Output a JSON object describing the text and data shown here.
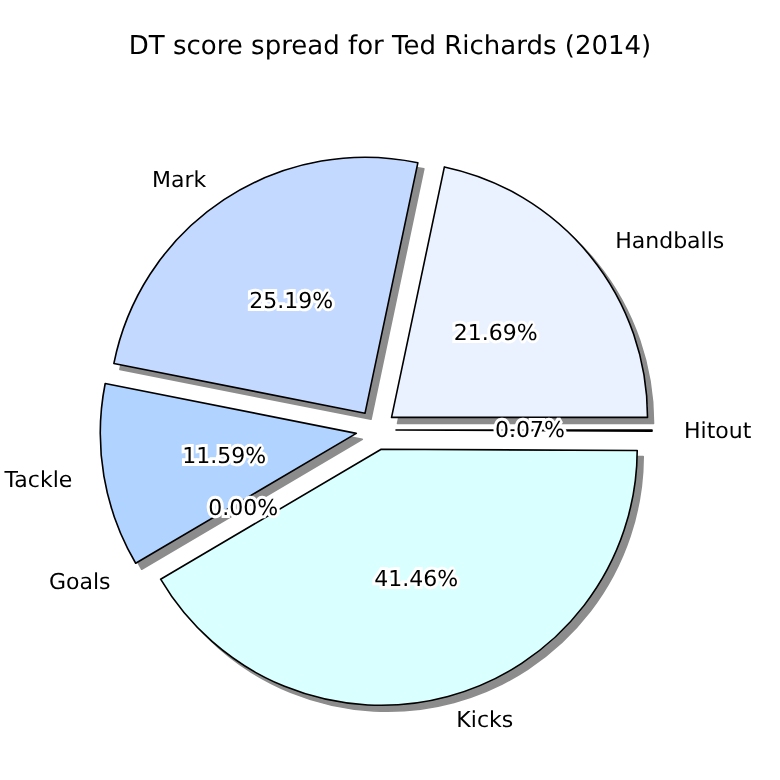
{
  "chart_data": {
    "type": "pie",
    "title": "DT score spread for Ted Richards (2014)",
    "categories": [
      "Handballs",
      "Mark",
      "Tackle",
      "Goals",
      "Kicks",
      "Hitout"
    ],
    "values": [
      21.69,
      25.19,
      11.59,
      0.0,
      41.46,
      0.07
    ],
    "colors": [
      "#ebf2ff",
      "#c4d9ff",
      "#b0d3ff",
      "#c8e8ff",
      "#d9ffff",
      "#f0f8ff"
    ],
    "value_labels": [
      "21.69%",
      "25.19%",
      "11.59%",
      "0.00%",
      "41.46%",
      "0.07%"
    ]
  }
}
